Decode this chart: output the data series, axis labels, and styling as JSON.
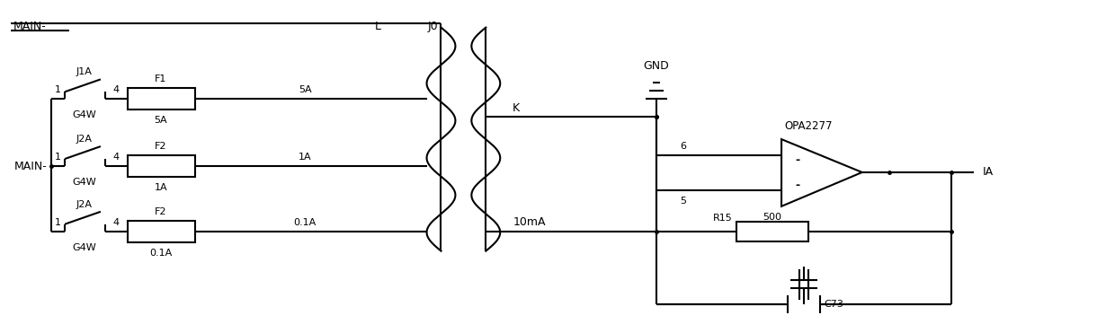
{
  "bg_color": "#ffffff",
  "figsize": [
    12.4,
    3.71
  ],
  "dpi": 100,
  "labels": {
    "main_top": "MAIN-",
    "L": "L",
    "J0": "J0",
    "J1A": "J1A",
    "G4W_1": "G4W",
    "J2A_1": "J2A",
    "G4W_2": "G4W",
    "J2A_2": "J2A",
    "G4W_3": "G4W",
    "MAIN_left": "MAIN-",
    "F1": "F1",
    "F2a": "F2",
    "F2b": "F2",
    "fuse1_val": "5A",
    "fuse1_line": "5A",
    "fuse2_val": "1A",
    "fuse2_line": "1A",
    "fuse3_val": "0.1A",
    "fuse3_line": "0.1A",
    "K": "K",
    "GND": "GND",
    "num6": "6",
    "num5": "5",
    "OPA": "OPA2277",
    "IA": "IA",
    "10mA": "10mA",
    "R15": "R15",
    "R_val": "500",
    "C73": "C73"
  }
}
